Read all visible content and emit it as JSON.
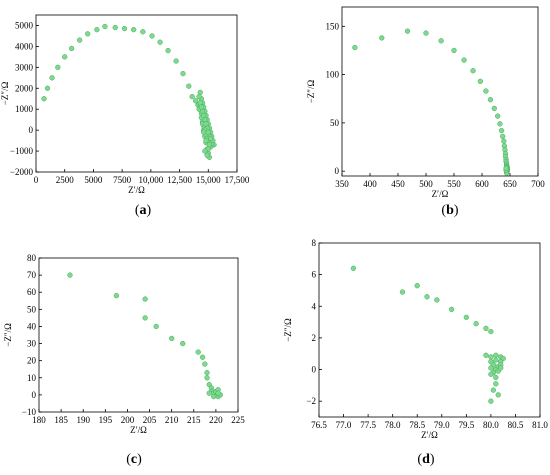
{
  "figure": {
    "panels": [
      {
        "caption_open": "(",
        "caption_letter": "a",
        "caption_close": ")"
      },
      {
        "caption_open": "(",
        "caption_letter": "b",
        "caption_close": ")"
      },
      {
        "caption_open": "(",
        "caption_letter": "c",
        "caption_close": ")"
      },
      {
        "caption_open": "(",
        "caption_letter": "d",
        "caption_close": ")"
      }
    ]
  },
  "colors": {
    "marker": "#7fd88f",
    "marker_edge": "#3fae5a",
    "axis": "#000000"
  },
  "chart_data": [
    {
      "type": "scatter",
      "xlabel": "Z′/Ω",
      "ylabel": "−Z″/Ω",
      "xlim": [
        0,
        17500
      ],
      "ylim": [
        -2000,
        5500
      ],
      "xticks": [
        0,
        2500,
        5000,
        7500,
        10000,
        12500,
        15000,
        17500
      ],
      "xtick_labels": [
        "0",
        "2500",
        "5000",
        "7500",
        "10,000",
        "12,500",
        "15,000",
        "17,500"
      ],
      "yticks": [
        -2000,
        -1000,
        0,
        1000,
        2000,
        3000,
        4000,
        5000
      ],
      "ytick_labels": [
        "−2000",
        "−1000",
        "0",
        "1000",
        "2000",
        "3000",
        "4000",
        "5000"
      ],
      "grid": false,
      "series": [
        {
          "x": [
            700,
            1000,
            1400,
            1900,
            2500,
            3100,
            3800,
            4500,
            5300,
            6000,
            6900,
            7700,
            8500,
            9300,
            10100,
            10800,
            11500,
            12200,
            12800,
            13300,
            13600,
            13900,
            14100,
            14200,
            14300,
            14400,
            14500,
            14600,
            14700,
            14800,
            14900,
            15000,
            15100,
            15200,
            15300,
            15400,
            15500,
            14200,
            14300,
            14400,
            14500,
            14600,
            14700,
            14800,
            14900,
            15000,
            15100,
            14300,
            14500,
            14700,
            14900,
            15100,
            15300,
            14400,
            14600,
            14800,
            15000,
            15200,
            14500,
            14700,
            14900,
            15100,
            14600,
            14800,
            15000,
            14700,
            14900,
            14400,
            14600,
            14800,
            15000,
            15200
          ],
          "y": [
            1500,
            2000,
            2500,
            3000,
            3500,
            3900,
            4300,
            4600,
            4800,
            4950,
            4900,
            4850,
            4800,
            4700,
            4500,
            4200,
            3800,
            3300,
            2700,
            2100,
            1600,
            1400,
            1200,
            1000,
            1800,
            1500,
            1300,
            1100,
            900,
            700,
            500,
            300,
            100,
            -100,
            -300,
            -500,
            -700,
            1600,
            1200,
            800,
            400,
            0,
            -300,
            -600,
            -900,
            -1100,
            -1300,
            1300,
            900,
            500,
            100,
            -300,
            -700,
            600,
            200,
            -200,
            -500,
            -800,
            300,
            0,
            -400,
            -700,
            -100,
            -500,
            -900,
            -1000,
            -1200,
            1100,
            700,
            300,
            -100,
            -400
          ]
        }
      ]
    },
    {
      "type": "scatter",
      "xlabel": "Z′/Ω",
      "ylabel": "−Z″/Ω",
      "xlim": [
        350,
        700
      ],
      "ylim": [
        -5,
        170
      ],
      "xticks": [
        350,
        400,
        450,
        500,
        550,
        600,
        650,
        700
      ],
      "xtick_labels": [
        "350",
        "400",
        "450",
        "500",
        "550",
        "600",
        "650",
        "700"
      ],
      "yticks": [
        0,
        50,
        100,
        150
      ],
      "ytick_labels": [
        "0",
        "50",
        "100",
        "150"
      ],
      "grid": false,
      "series": [
        {
          "x": [
            373,
            421,
            467,
            500,
            527,
            550,
            568,
            584,
            597,
            607,
            615,
            622,
            628,
            632,
            635,
            637,
            639,
            640,
            641,
            642,
            642,
            643,
            643,
            644,
            644,
            644,
            645,
            645,
            645,
            645,
            645,
            644,
            644,
            643,
            643
          ],
          "y": [
            128,
            138,
            145,
            143,
            135,
            125,
            115,
            104,
            93,
            83,
            74,
            65,
            57,
            49,
            42,
            36,
            31,
            26,
            22,
            18,
            15,
            12,
            10,
            8,
            6,
            5,
            4,
            3,
            2,
            1,
            0,
            -1,
            -2,
            1,
            3
          ]
        }
      ]
    },
    {
      "type": "scatter",
      "xlabel": "Z′/Ω",
      "ylabel": "−Z″/Ω",
      "xlim": [
        180,
        225
      ],
      "ylim": [
        -10,
        80
      ],
      "xticks": [
        180,
        185,
        190,
        195,
        200,
        205,
        210,
        215,
        220,
        225
      ],
      "xtick_labels": [
        "180",
        "185",
        "190",
        "195",
        "200",
        "205",
        "210",
        "215",
        "220",
        "225"
      ],
      "yticks": [
        -10,
        0,
        10,
        20,
        30,
        40,
        50,
        60,
        70,
        80
      ],
      "ytick_labels": [
        "−10",
        "0",
        "10",
        "20",
        "30",
        "40",
        "50",
        "60",
        "70",
        "80"
      ],
      "grid": false,
      "series": [
        {
          "x": [
            187,
            197.5,
            204,
            204,
            206.5,
            210,
            212.5,
            216,
            217,
            217.5,
            218,
            218,
            218.5,
            219,
            219,
            219.5,
            220,
            220,
            220.5,
            220.5,
            221,
            218.5,
            219.5,
            220.5
          ],
          "y": [
            70,
            58,
            56,
            45,
            40,
            33,
            30,
            25,
            22,
            18,
            13,
            10,
            6,
            4,
            2,
            1,
            0,
            2,
            -1,
            3,
            0,
            1,
            -1,
            1
          ]
        }
      ]
    },
    {
      "type": "scatter",
      "xlabel": "Z′/Ω",
      "ylabel": "−Z″/Ω",
      "xlim": [
        76.5,
        81
      ],
      "ylim": [
        -3,
        8
      ],
      "xticks": [
        76.5,
        77.0,
        77.5,
        78.0,
        78.5,
        79.0,
        79.5,
        80.0,
        80.5,
        81.0
      ],
      "xtick_labels": [
        "76.5",
        "77.0",
        "77.5",
        "78.0",
        "78.5",
        "79.0",
        "79.5",
        "80.0",
        "80.5",
        "81.0"
      ],
      "yticks": [
        -2,
        0,
        2,
        4,
        6,
        8
      ],
      "ytick_labels": [
        "−2",
        "0",
        "2",
        "4",
        "6",
        "8"
      ],
      "grid": false,
      "series": [
        {
          "x": [
            77.2,
            78.2,
            78.5,
            78.7,
            78.9,
            79.2,
            79.5,
            79.7,
            79.9,
            80.0,
            79.9,
            80.0,
            80.1,
            80.2,
            80.25,
            80.0,
            80.1,
            80.2,
            80.05,
            80.15,
            80.0,
            80.1,
            80.2,
            80.05,
            80.15,
            80.1,
            80.0,
            80.2,
            80.05,
            80.1,
            80.15,
            80.0
          ],
          "y": [
            6.4,
            4.9,
            5.3,
            4.6,
            4.4,
            3.8,
            3.3,
            2.9,
            2.6,
            2.4,
            0.9,
            0.8,
            0.9,
            0.8,
            0.7,
            0.5,
            0.6,
            0.5,
            0.3,
            0.2,
            0.1,
            0.0,
            0.3,
            -0.2,
            -0.1,
            -0.5,
            -0.3,
            0.1,
            -1.3,
            -0.9,
            -1.6,
            -2.0
          ]
        }
      ]
    }
  ]
}
